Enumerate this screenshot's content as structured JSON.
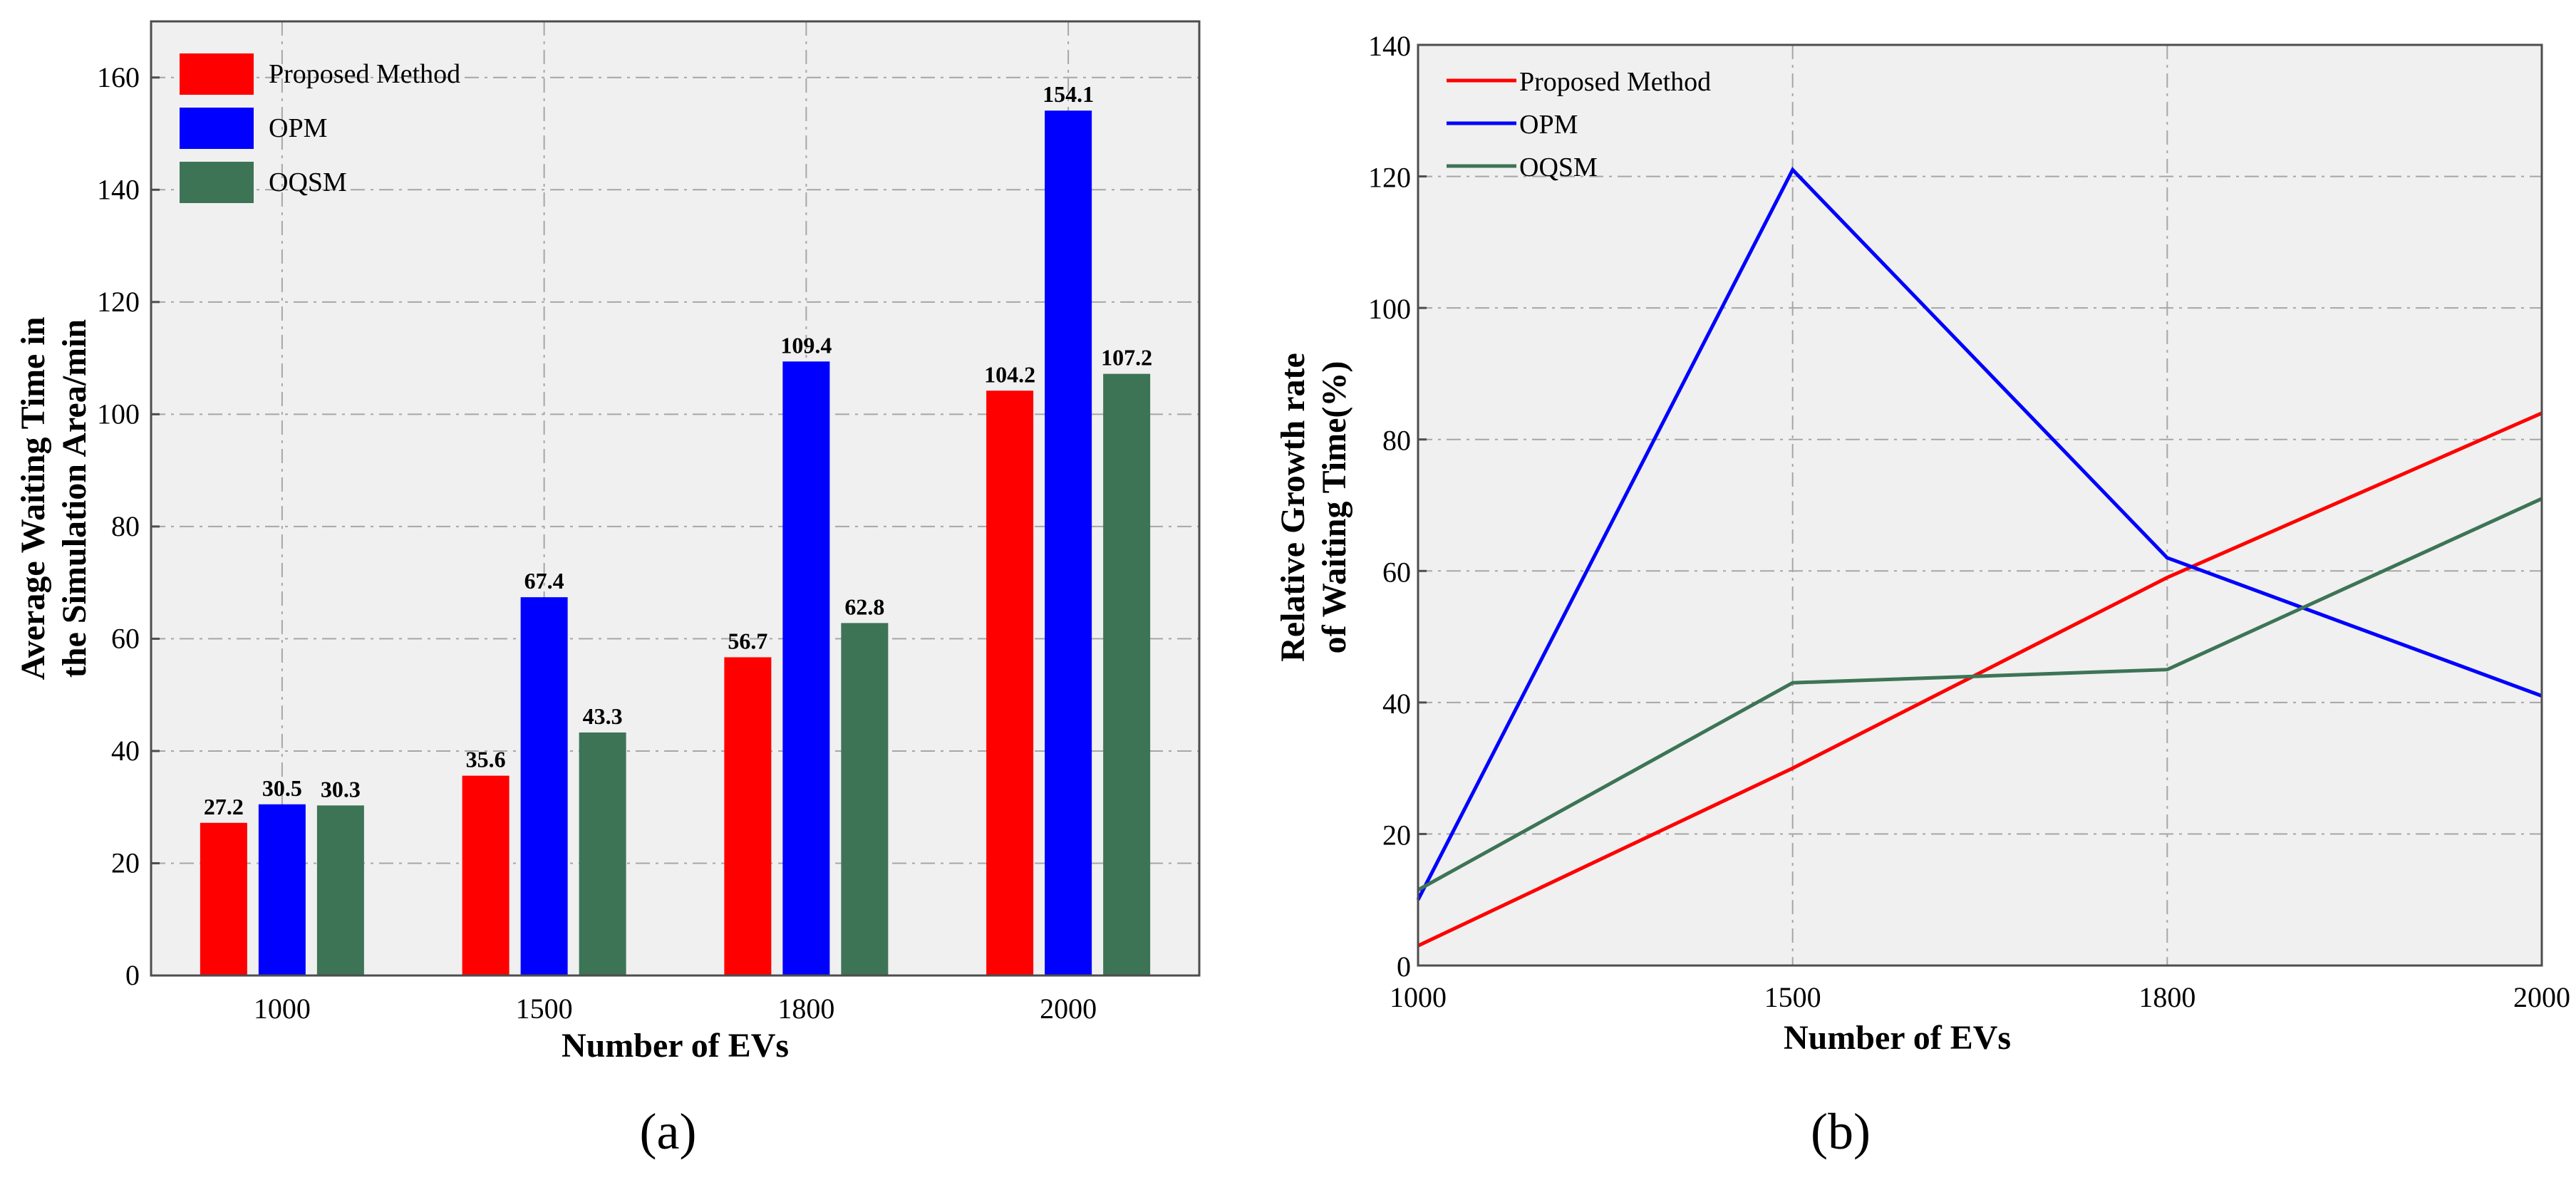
{
  "chart_data": [
    {
      "panel": "a",
      "panel_label": "(a)",
      "type": "bar",
      "xlabel": "Number of EVs",
      "ylabel_lines": [
        "Average Waiting Time in",
        "the Simulation Area/min"
      ],
      "categories": [
        "1000",
        "1500",
        "1800",
        "2000"
      ],
      "ylim": [
        0,
        170
      ],
      "yticks": [
        0,
        20,
        40,
        60,
        80,
        100,
        120,
        140,
        160
      ],
      "grid": true,
      "legend_position": "top-left",
      "series": [
        {
          "name": "Proposed Method",
          "color": "#ff0000",
          "values": [
            27.2,
            35.6,
            56.7,
            104.2
          ],
          "labels": [
            "27.2",
            "35.6",
            "56.7",
            "104.2"
          ]
        },
        {
          "name": "OPM",
          "color": "#0000ff",
          "values": [
            30.5,
            67.4,
            109.4,
            154.1
          ],
          "labels": [
            "30.5",
            "67.4",
            "109.4",
            "154.1"
          ]
        },
        {
          "name": "OQSM",
          "color": "#3d7456",
          "values": [
            30.3,
            43.3,
            62.8,
            107.2
          ],
          "labels": [
            "30.3",
            "43.3",
            "62.8",
            "107.2"
          ]
        }
      ]
    },
    {
      "panel": "b",
      "panel_label": "(b)",
      "type": "line",
      "xlabel": "Number of EVs",
      "ylabel_lines": [
        "Relative Growth rate",
        "of Waiting Time(%)"
      ],
      "x": [
        "1000",
        "1500",
        "1800",
        "2000"
      ],
      "ylim": [
        0,
        140
      ],
      "yticks": [
        0,
        20,
        40,
        60,
        80,
        100,
        120,
        140
      ],
      "grid": true,
      "legend_position": "top-left",
      "series": [
        {
          "name": "Proposed Method",
          "color": "#ff0000",
          "values": [
            3,
            30,
            59,
            84
          ]
        },
        {
          "name": "OPM",
          "color": "#0000ff",
          "values": [
            10,
            121,
            62,
            41
          ]
        },
        {
          "name": "OQSM",
          "color": "#3d7456",
          "values": [
            11.5,
            43,
            45,
            71
          ]
        }
      ]
    }
  ]
}
